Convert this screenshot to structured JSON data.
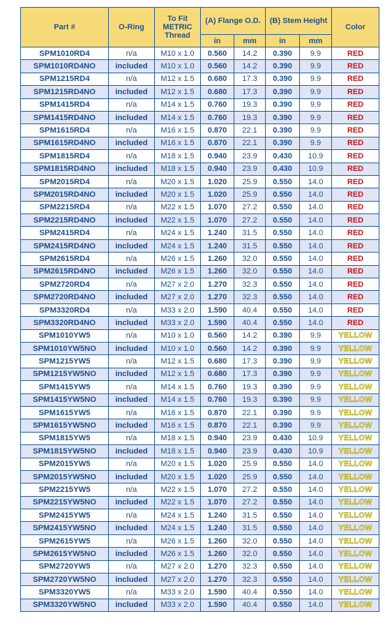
{
  "headers": {
    "part": "Part #",
    "oring": "O-Ring",
    "thread": "To Fit METRIC Thread",
    "flange": "(A) Flange O.D.",
    "stem": "(B) Stem Height",
    "color": "Color",
    "unit_in": "in",
    "unit_mm": "mm"
  },
  "colors": {
    "red": "#c9151b",
    "yellow": "#f4ea2c",
    "header_bg": "#f8db79",
    "text": "#1c4d8c"
  },
  "rows": [
    {
      "part": "SPM1010RD4",
      "oring": "n/a",
      "thread": "M10 x 1.0",
      "f_in": "0.560",
      "f_mm": "14.2",
      "s_in": "0.390",
      "s_mm": "9.9",
      "color": "RED"
    },
    {
      "part": "SPM1010RD4NO",
      "oring": "included",
      "thread": "M10 x 1.0",
      "f_in": "0.560",
      "f_mm": "14.2",
      "s_in": "0.390",
      "s_mm": "9.9",
      "color": "RED"
    },
    {
      "part": "SPM1215RD4",
      "oring": "n/a",
      "thread": "M12 x 1.5",
      "f_in": "0.680",
      "f_mm": "17.3",
      "s_in": "0.390",
      "s_mm": "9.9",
      "color": "RED"
    },
    {
      "part": "SPM1215RD4NO",
      "oring": "included",
      "thread": "M12 x 1.5",
      "f_in": "0.680",
      "f_mm": "17.3",
      "s_in": "0.390",
      "s_mm": "9.9",
      "color": "RED"
    },
    {
      "part": "SPM1415RD4",
      "oring": "n/a",
      "thread": "M14 x 1.5",
      "f_in": "0.760",
      "f_mm": "19.3",
      "s_in": "0.390",
      "s_mm": "9.9",
      "color": "RED"
    },
    {
      "part": "SPM1415RD4NO",
      "oring": "included",
      "thread": "M14 x 1.5",
      "f_in": "0.760",
      "f_mm": "19.3",
      "s_in": "0.390",
      "s_mm": "9.9",
      "color": "RED"
    },
    {
      "part": "SPM1615RD4",
      "oring": "n/a",
      "thread": "M16 x 1.5",
      "f_in": "0.870",
      "f_mm": "22.1",
      "s_in": "0.390",
      "s_mm": "9.9",
      "color": "RED"
    },
    {
      "part": "SPM1615RD4NO",
      "oring": "included",
      "thread": "M16 x 1.5",
      "f_in": "0.870",
      "f_mm": "22.1",
      "s_in": "0.390",
      "s_mm": "9.9",
      "color": "RED"
    },
    {
      "part": "SPM1815RD4",
      "oring": "n/a",
      "thread": "M18 x 1.5",
      "f_in": "0.940",
      "f_mm": "23.9",
      "s_in": "0.430",
      "s_mm": "10.9",
      "color": "RED"
    },
    {
      "part": "SPM1815RD4NO",
      "oring": "included",
      "thread": "M18 x 1.5",
      "f_in": "0.940",
      "f_mm": "23.9",
      "s_in": "0.430",
      "s_mm": "10.9",
      "color": "RED"
    },
    {
      "part": "SPM2015RD4",
      "oring": "n/a",
      "thread": "M20 x 1.5",
      "f_in": "1.020",
      "f_mm": "25.9",
      "s_in": "0.550",
      "s_mm": "14.0",
      "color": "RED"
    },
    {
      "part": "SPM2015RD4NO",
      "oring": "included",
      "thread": "M20 x 1.5",
      "f_in": "1.020",
      "f_mm": "25.9",
      "s_in": "0.550",
      "s_mm": "14.0",
      "color": "RED"
    },
    {
      "part": "SPM2215RD4",
      "oring": "n/a",
      "thread": "M22 x 1.5",
      "f_in": "1.070",
      "f_mm": "27.2",
      "s_in": "0.550",
      "s_mm": "14.0",
      "color": "RED"
    },
    {
      "part": "SPM2215RD4NO",
      "oring": "included",
      "thread": "M22 x 1.5",
      "f_in": "1.070",
      "f_mm": "27.2",
      "s_in": "0.550",
      "s_mm": "14.0",
      "color": "RED"
    },
    {
      "part": "SPM2415RD4",
      "oring": "n/a",
      "thread": "M24 x 1.5",
      "f_in": "1.240",
      "f_mm": "31.5",
      "s_in": "0.550",
      "s_mm": "14.0",
      "color": "RED"
    },
    {
      "part": "SPM2415RD4NO",
      "oring": "included",
      "thread": "M24 x 1.5",
      "f_in": "1.240",
      "f_mm": "31.5",
      "s_in": "0.550",
      "s_mm": "14.0",
      "color": "RED"
    },
    {
      "part": "SPM2615RD4",
      "oring": "n/a",
      "thread": "M26 x 1.5",
      "f_in": "1.260",
      "f_mm": "32.0",
      "s_in": "0.550",
      "s_mm": "14.0",
      "color": "RED"
    },
    {
      "part": "SPM2615RD4NO",
      "oring": "included",
      "thread": "M26 x 1.5",
      "f_in": "1.260",
      "f_mm": "32.0",
      "s_in": "0.550",
      "s_mm": "14.0",
      "color": "RED"
    },
    {
      "part": "SPM2720RD4",
      "oring": "n/a",
      "thread": "M27 x 2.0",
      "f_in": "1.270",
      "f_mm": "32.3",
      "s_in": "0.550",
      "s_mm": "14.0",
      "color": "RED"
    },
    {
      "part": "SPM2720RD4NO",
      "oring": "included",
      "thread": "M27 x 2.0",
      "f_in": "1.270",
      "f_mm": "32.3",
      "s_in": "0.550",
      "s_mm": "14.0",
      "color": "RED"
    },
    {
      "part": "SPM3320RD4",
      "oring": "n/a",
      "thread": "M33 x 2.0",
      "f_in": "1.590",
      "f_mm": "40.4",
      "s_in": "0.550",
      "s_mm": "14.0",
      "color": "RED"
    },
    {
      "part": "SPM3320RD4NO",
      "oring": "included",
      "thread": "M33 x 2.0",
      "f_in": "1.590",
      "f_mm": "40.4",
      "s_in": "0.550",
      "s_mm": "14.0",
      "color": "RED"
    },
    {
      "part": "SPM1010YW5",
      "oring": "n/a",
      "thread": "M10 x 1.0",
      "f_in": "0.560",
      "f_mm": "14.2",
      "s_in": "0.390",
      "s_mm": "9.9",
      "color": "YELLOW"
    },
    {
      "part": "SPM1010YW5NO",
      "oring": "included",
      "thread": "M10 x 1.0",
      "f_in": "0.560",
      "f_mm": "14.2",
      "s_in": "0.390",
      "s_mm": "9.9",
      "color": "YELLOW"
    },
    {
      "part": "SPM1215YW5",
      "oring": "n/a",
      "thread": "M12 x 1.5",
      "f_in": "0.680",
      "f_mm": "17.3",
      "s_in": "0.390",
      "s_mm": "9.9",
      "color": "YELLOW"
    },
    {
      "part": "SPM1215YW5NO",
      "oring": "included",
      "thread": "M12 x 1.5",
      "f_in": "0.680",
      "f_mm": "17.3",
      "s_in": "0.390",
      "s_mm": "9.9",
      "color": "YELLOW"
    },
    {
      "part": "SPM1415YW5",
      "oring": "n/a",
      "thread": "M14 x 1.5",
      "f_in": "0.760",
      "f_mm": "19.3",
      "s_in": "0.390",
      "s_mm": "9.9",
      "color": "YELLOW"
    },
    {
      "part": "SPM1415YW5NO",
      "oring": "included",
      "thread": "M14 x 1.5",
      "f_in": "0.760",
      "f_mm": "19.3",
      "s_in": "0.390",
      "s_mm": "9.9",
      "color": "YELLOW"
    },
    {
      "part": "SPM1615YW5",
      "oring": "n/a",
      "thread": "M16 x 1.5",
      "f_in": "0.870",
      "f_mm": "22.1",
      "s_in": "0.390",
      "s_mm": "9.9",
      "color": "YELLOW"
    },
    {
      "part": "SPM1615YW5NO",
      "oring": "included",
      "thread": "M16 x 1.5",
      "f_in": "0.870",
      "f_mm": "22.1",
      "s_in": "0.390",
      "s_mm": "9.9",
      "color": "YELLOW"
    },
    {
      "part": "SPM1815YW5",
      "oring": "n/a",
      "thread": "M18 x 1.5",
      "f_in": "0.940",
      "f_mm": "23.9",
      "s_in": "0.430",
      "s_mm": "10.9",
      "color": "YELLOW"
    },
    {
      "part": "SPM1815YW5NO",
      "oring": "included",
      "thread": "M18 x 1.5",
      "f_in": "0.940",
      "f_mm": "23.9",
      "s_in": "0.430",
      "s_mm": "10.9",
      "color": "YELLOW"
    },
    {
      "part": "SPM2015YW5",
      "oring": "n/a",
      "thread": "M20 x 1.5",
      "f_in": "1.020",
      "f_mm": "25.9",
      "s_in": "0.550",
      "s_mm": "14.0",
      "color": "YELLOW"
    },
    {
      "part": "SPM2015YW5NO",
      "oring": "included",
      "thread": "M20 x 1.5",
      "f_in": "1.020",
      "f_mm": "25.9",
      "s_in": "0.550",
      "s_mm": "14.0",
      "color": "YELLOW"
    },
    {
      "part": "SPM2215YW5",
      "oring": "n/a",
      "thread": "M22 x 1.5",
      "f_in": "1.070",
      "f_mm": "27.2",
      "s_in": "0.550",
      "s_mm": "14.0",
      "color": "YELLOW"
    },
    {
      "part": "SPM2215YW5NO",
      "oring": "included",
      "thread": "M22 x 1.5",
      "f_in": "1.070",
      "f_mm": "27.2",
      "s_in": "0.550",
      "s_mm": "14.0",
      "color": "YELLOW"
    },
    {
      "part": "SPM2415YW5",
      "oring": "n/a",
      "thread": "M24 x 1.5",
      "f_in": "1.240",
      "f_mm": "31.5",
      "s_in": "0.550",
      "s_mm": "14.0",
      "color": "YELLOW"
    },
    {
      "part": "SPM2415YW5NO",
      "oring": "included",
      "thread": "M24 x 1.5",
      "f_in": "1.240",
      "f_mm": "31.5",
      "s_in": "0.550",
      "s_mm": "14.0",
      "color": "YELLOW"
    },
    {
      "part": "SPM2615YW5",
      "oring": "n/a",
      "thread": "M26 x 1.5",
      "f_in": "1.260",
      "f_mm": "32.0",
      "s_in": "0.550",
      "s_mm": "14.0",
      "color": "YELLOW"
    },
    {
      "part": "SPM2615YW5NO",
      "oring": "included",
      "thread": "M26 x 1.5",
      "f_in": "1.260",
      "f_mm": "32.0",
      "s_in": "0.550",
      "s_mm": "14.0",
      "color": "YELLOW"
    },
    {
      "part": "SPM2720YW5",
      "oring": "n/a",
      "thread": "M27 x 2.0",
      "f_in": "1.270",
      "f_mm": "32.3",
      "s_in": "0.550",
      "s_mm": "14.0",
      "color": "YELLOW"
    },
    {
      "part": "SPM2720YW5NO",
      "oring": "included",
      "thread": "M27 x 2.0",
      "f_in": "1.270",
      "f_mm": "32.3",
      "s_in": "0.550",
      "s_mm": "14.0",
      "color": "YELLOW"
    },
    {
      "part": "SPM3320YW5",
      "oring": "n/a",
      "thread": "M33 x 2.0",
      "f_in": "1.590",
      "f_mm": "40.4",
      "s_in": "0.550",
      "s_mm": "14.0",
      "color": "YELLOW"
    },
    {
      "part": "SPM3320YW5NO",
      "oring": "included",
      "thread": "M33 x 2.0",
      "f_in": "1.590",
      "f_mm": "40.4",
      "s_in": "0.550",
      "s_mm": "14.0",
      "color": "YELLOW"
    }
  ]
}
